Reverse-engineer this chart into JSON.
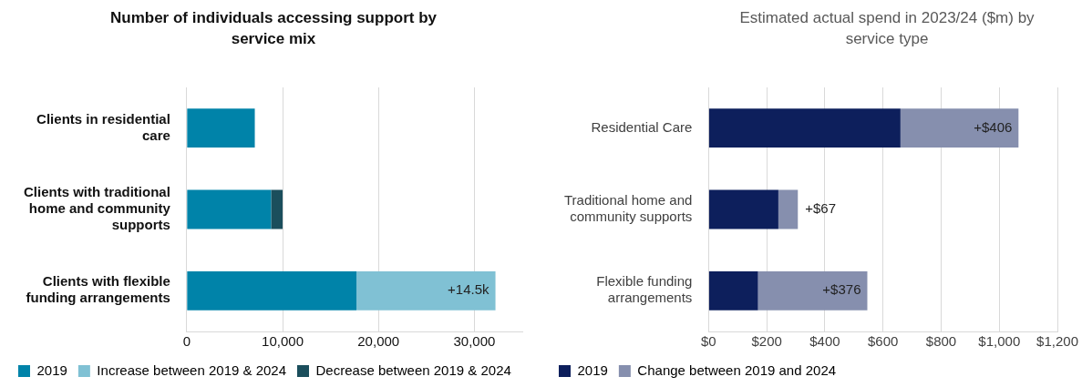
{
  "chart_data": [
    {
      "type": "bar",
      "orientation": "horizontal",
      "stacked": true,
      "title": "Number of individuals accessing support by service mix",
      "categories": [
        "Clients in residential care",
        "Clients with traditional home and community supports",
        "Clients with flexible funding arrangements"
      ],
      "series": [
        {
          "name": "2019",
          "color": "#0083a9",
          "values": [
            7100,
            8800,
            17700
          ]
        },
        {
          "name": "Increase between 2019 & 2024",
          "color": "#80c1d4",
          "values": [
            null,
            null,
            14500
          ],
          "value_labels": [
            null,
            null,
            "+14.5k"
          ]
        },
        {
          "name": "Decrease between 2019 & 2024",
          "color": "#1b4e5c",
          "values": [
            null,
            1200,
            null
          ]
        }
      ],
      "xlim": [
        0,
        35000
      ],
      "xticks": [
        {
          "value": 0,
          "label": "0"
        },
        {
          "value": 10000,
          "label": "10,000"
        },
        {
          "value": 20000,
          "label": "20,000"
        },
        {
          "value": 30000,
          "label": "30,000"
        }
      ],
      "grid": "x",
      "legend": "bottom"
    },
    {
      "type": "bar",
      "orientation": "horizontal",
      "stacked": true,
      "title": "Estimated actual spend in 2023/24 ($m) by service type",
      "categories": [
        "Residential Care",
        "Traditional home and community supports",
        "Flexible funding arrangements"
      ],
      "series": [
        {
          "name": "2019",
          "color": "#0d1f5c",
          "values": [
            660,
            240,
            170
          ]
        },
        {
          "name": "Change between 2019 and 2024",
          "color": "#868fae",
          "values": [
            406,
            67,
            376
          ],
          "value_labels": [
            "+$406",
            "+$67",
            "+$376"
          ]
        }
      ],
      "xlim": [
        0,
        1200
      ],
      "xticks": [
        {
          "value": 0,
          "label": "$0"
        },
        {
          "value": 200,
          "label": "$200"
        },
        {
          "value": 400,
          "label": "$400"
        },
        {
          "value": 600,
          "label": "$600"
        },
        {
          "value": 800,
          "label": "$800"
        },
        {
          "value": 1000,
          "label": "$1,000"
        },
        {
          "value": 1200,
          "label": "$1,200"
        }
      ],
      "grid": "x",
      "legend": "bottom"
    }
  ]
}
